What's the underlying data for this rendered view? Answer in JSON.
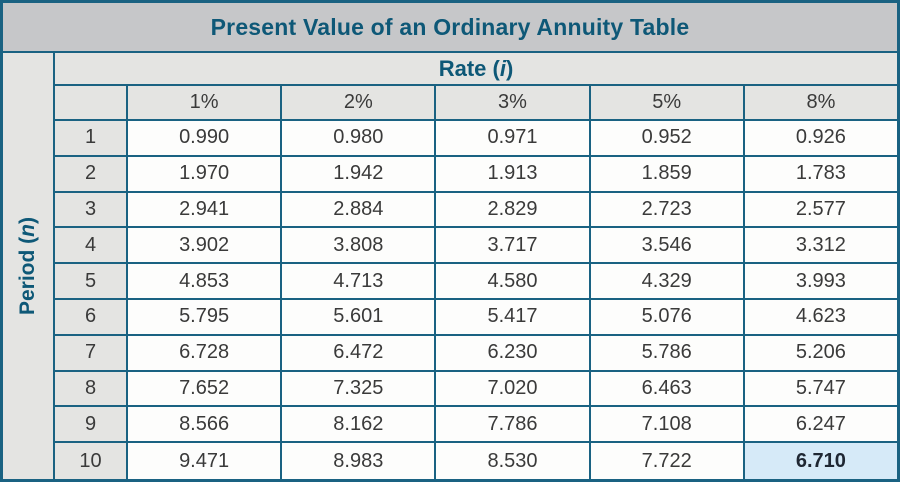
{
  "title": "Present Value of an Ordinary Annuity Table",
  "colors": {
    "border": "#1A6282",
    "title_text": "#0E5877",
    "title_bg": "#C6C7C9",
    "header_bg": "#E4E4E2",
    "cell_bg": "#FDFDFC",
    "highlight_bg": "#D6EAF8",
    "data_text": "#3A3A3A"
  },
  "labels": {
    "rate": {
      "prefix": "Rate (",
      "var": "i",
      "suffix": ")"
    },
    "period": {
      "prefix": "Period (",
      "var": "n",
      "suffix": ")"
    }
  },
  "chart_data": {
    "type": "table",
    "title": "Present Value of an Ordinary Annuity Table",
    "column_group_label": "Rate (i)",
    "row_group_label": "Period (n)",
    "columns": [
      "1%",
      "2%",
      "3%",
      "5%",
      "8%"
    ],
    "rows": [
      {
        "period": "1",
        "values": [
          "0.990",
          "0.980",
          "0.971",
          "0.952",
          "0.926"
        ]
      },
      {
        "period": "2",
        "values": [
          "1.970",
          "1.942",
          "1.913",
          "1.859",
          "1.783"
        ]
      },
      {
        "period": "3",
        "values": [
          "2.941",
          "2.884",
          "2.829",
          "2.723",
          "2.577"
        ]
      },
      {
        "period": "4",
        "values": [
          "3.902",
          "3.808",
          "3.717",
          "3.546",
          "3.312"
        ]
      },
      {
        "period": "5",
        "values": [
          "4.853",
          "4.713",
          "4.580",
          "4.329",
          "3.993"
        ]
      },
      {
        "period": "6",
        "values": [
          "5.795",
          "5.601",
          "5.417",
          "5.076",
          "4.623"
        ]
      },
      {
        "period": "7",
        "values": [
          "6.728",
          "6.472",
          "6.230",
          "5.786",
          "5.206"
        ]
      },
      {
        "period": "8",
        "values": [
          "7.652",
          "7.325",
          "7.020",
          "6.463",
          "5.747"
        ]
      },
      {
        "period": "9",
        "values": [
          "8.566",
          "8.162",
          "7.786",
          "7.108",
          "6.247"
        ]
      },
      {
        "period": "10",
        "values": [
          "9.471",
          "8.983",
          "8.530",
          "7.722",
          "6.710"
        ]
      }
    ],
    "highlighted_cell": {
      "period": "10",
      "column": "8%",
      "value": "6.710"
    }
  }
}
